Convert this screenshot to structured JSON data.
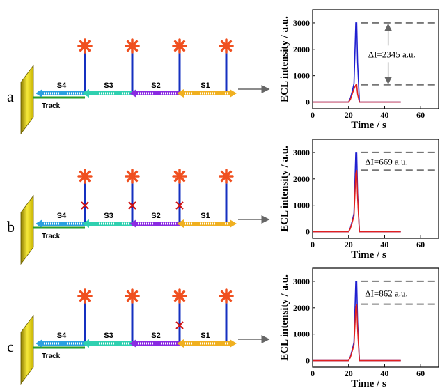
{
  "panels": [
    {
      "label": "a",
      "strands": [
        "S4",
        "S3",
        "S2",
        "S1"
      ],
      "track": "Track"
    },
    {
      "label": "b",
      "strands": [
        "S4",
        "S3",
        "S2",
        "S1"
      ],
      "track": "Track"
    },
    {
      "label": "c",
      "strands": [
        "S4",
        "S3",
        "S2",
        "S1"
      ],
      "track": "Track"
    }
  ],
  "chart_data": [
    {
      "type": "line",
      "x_label": "Time / s",
      "y_label": "ECL intensity / a.u.",
      "xlim": [
        0,
        70
      ],
      "ylim": [
        -250,
        3500
      ],
      "xticks": [
        0,
        20,
        40,
        60
      ],
      "yticks": [
        0,
        1000,
        2000,
        3000
      ],
      "x": [
        0,
        10,
        20,
        21,
        22,
        23,
        24,
        24.5,
        25,
        26,
        30,
        40,
        49
      ],
      "series": [
        {
          "color": "#2020d0",
          "values": [
            0,
            0,
            0,
            150,
            400,
            700,
            3000,
            3000,
            1500,
            0,
            0,
            0,
            0
          ]
        },
        {
          "color": "#e02020",
          "values": [
            0,
            0,
            0,
            100,
            300,
            500,
            650,
            655,
            300,
            0,
            0,
            0,
            0
          ]
        }
      ],
      "hlines": [
        3000,
        655
      ],
      "annotation": "ΔI=2345 a.u.",
      "delta_arrow": true
    },
    {
      "type": "line",
      "x_label": "Time / s",
      "y_label": "ECL intensity / a.u.",
      "xlim": [
        0,
        70
      ],
      "ylim": [
        -250,
        3500
      ],
      "xticks": [
        0,
        20,
        40,
        60
      ],
      "yticks": [
        0,
        1000,
        2000,
        3000
      ],
      "x": [
        0,
        10,
        20,
        21,
        22,
        23,
        24,
        24.5,
        25,
        26,
        30,
        40,
        49
      ],
      "series": [
        {
          "color": "#2020d0",
          "values": [
            0,
            0,
            0,
            150,
            400,
            700,
            3000,
            3000,
            1500,
            0,
            0,
            0,
            0
          ]
        },
        {
          "color": "#e02020",
          "values": [
            0,
            0,
            0,
            120,
            350,
            600,
            2200,
            2331,
            1300,
            0,
            0,
            0,
            0
          ]
        }
      ],
      "hlines": [
        3000,
        2331
      ],
      "annotation": "ΔI=669 a.u.",
      "delta_arrow": false
    },
    {
      "type": "line",
      "x_label": "Time / s",
      "y_label": "ECL intensity / a.u.",
      "xlim": [
        0,
        70
      ],
      "ylim": [
        -250,
        3500
      ],
      "xticks": [
        0,
        20,
        40,
        60
      ],
      "yticks": [
        0,
        1000,
        2000,
        3000
      ],
      "x": [
        0,
        10,
        20,
        21,
        22,
        23,
        24,
        24.5,
        25,
        26,
        30,
        40,
        49
      ],
      "series": [
        {
          "color": "#2020d0",
          "values": [
            0,
            0,
            0,
            150,
            400,
            700,
            3000,
            3000,
            1500,
            0,
            0,
            0,
            0
          ]
        },
        {
          "color": "#e02020",
          "values": [
            0,
            0,
            0,
            120,
            350,
            600,
            2000,
            2138,
            1200,
            0,
            0,
            0,
            0
          ]
        }
      ],
      "hlines": [
        3000,
        2138
      ],
      "annotation": "ΔI=862 a.u.",
      "delta_arrow": false
    }
  ]
}
